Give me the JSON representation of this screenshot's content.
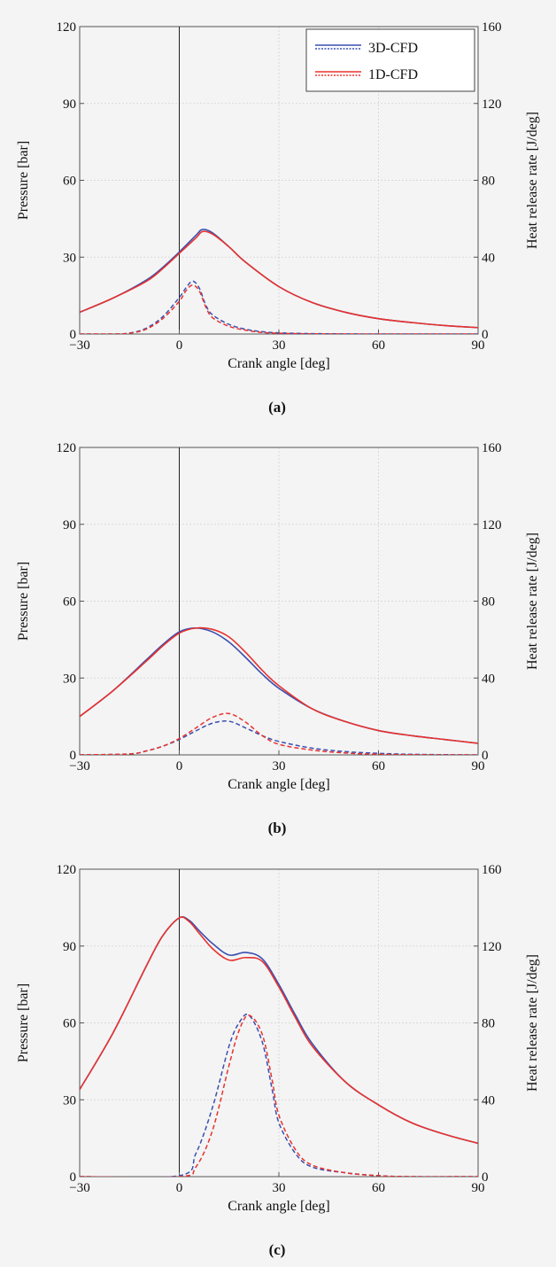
{
  "colors": {
    "3D-CFD": "#3a4fb0",
    "1D-CFD": "#e8322e",
    "grid": "#d9d9d9",
    "frame": "#555555"
  },
  "legend": {
    "placement": "top-right",
    "entries": [
      "3D-CFD",
      "1D-CFD"
    ]
  },
  "chart_data": [
    {
      "type": "line",
      "panel_label": "(a)",
      "xlabel": "Crank angle [deg]",
      "ylabel": "Pressure [bar]",
      "y2label": "Heat release rate [J/deg]",
      "xlim": [
        -30,
        90
      ],
      "ylim": [
        0,
        120
      ],
      "y2lim": [
        0,
        160
      ],
      "xticks": [
        "−30",
        "0",
        "30",
        "60",
        "90"
      ],
      "yticks": [
        "0",
        "30",
        "60",
        "90",
        "120"
      ],
      "y2ticks": [
        "0",
        "40",
        "80",
        "120",
        "160"
      ],
      "grid": true,
      "show_legend": true,
      "series": [
        {
          "name": "3D-CFD",
          "quantity": "pressure",
          "style": "solid",
          "x": [
            -30,
            -20,
            -10,
            -5,
            0,
            5,
            7,
            10,
            15,
            20,
            30,
            40,
            50,
            60,
            70,
            80,
            90
          ],
          "y": [
            8.5,
            14,
            21,
            26,
            32,
            38.5,
            40.8,
            39.5,
            34,
            28,
            18.5,
            12.3,
            8.5,
            6,
            4.5,
            3.3,
            2.5
          ]
        },
        {
          "name": "1D-CFD",
          "quantity": "pressure",
          "style": "solid",
          "x": [
            -30,
            -20,
            -10,
            -5,
            0,
            5,
            7,
            10,
            15,
            20,
            30,
            40,
            50,
            60,
            70,
            80,
            90
          ],
          "y": [
            8.5,
            14,
            20.5,
            25.5,
            31.5,
            37.5,
            40,
            39,
            34,
            28,
            18.5,
            12.3,
            8.5,
            6,
            4.5,
            3.3,
            2.5
          ]
        },
        {
          "name": "3D-CFD",
          "quantity": "heat release rate",
          "style": "dashed",
          "x": [
            -30,
            -20,
            -15,
            -10,
            -5,
            0,
            2,
            4,
            6,
            8,
            10,
            15,
            20,
            25,
            30,
            40,
            60,
            90
          ],
          "y": [
            0,
            0,
            0.5,
            3,
            9,
            19,
            24,
            27.5,
            24,
            15,
            10,
            5,
            2.5,
            1.2,
            0.6,
            0.2,
            0,
            0
          ]
        },
        {
          "name": "1D-CFD",
          "quantity": "heat release rate",
          "style": "dashed",
          "x": [
            -30,
            -20,
            -15,
            -10,
            -5,
            0,
            2,
            4,
            6,
            8,
            10,
            15,
            20,
            25,
            30,
            40,
            60,
            90
          ],
          "y": [
            0,
            0,
            0.4,
            2.5,
            8,
            17,
            22.5,
            25.5,
            22.5,
            14,
            8.5,
            4,
            2,
            0.8,
            0.4,
            0.1,
            0,
            0
          ]
        }
      ]
    },
    {
      "type": "line",
      "panel_label": "(b)",
      "xlabel": "Crank angle [deg]",
      "ylabel": "Pressure [bar]",
      "y2label": "Heat release rate [J/deg]",
      "xlim": [
        -30,
        90
      ],
      "ylim": [
        0,
        120
      ],
      "y2lim": [
        0,
        160
      ],
      "xticks": [
        "−30",
        "0",
        "30",
        "60",
        "90"
      ],
      "yticks": [
        "0",
        "30",
        "60",
        "90",
        "120"
      ],
      "y2ticks": [
        "0",
        "40",
        "80",
        "120",
        "160"
      ],
      "grid": true,
      "show_legend": false,
      "series": [
        {
          "name": "3D-CFD",
          "quantity": "pressure",
          "style": "solid",
          "x": [
            -30,
            -20,
            -10,
            -5,
            0,
            5,
            10,
            15,
            20,
            25,
            30,
            40,
            50,
            60,
            70,
            80,
            90
          ],
          "y": [
            15,
            25,
            37,
            43,
            48,
            49.5,
            48,
            44,
            38,
            31.5,
            26,
            18,
            13,
            9.5,
            7.5,
            6,
            4.5
          ]
        },
        {
          "name": "1D-CFD",
          "quantity": "pressure",
          "style": "solid",
          "x": [
            -30,
            -20,
            -10,
            -5,
            0,
            5,
            10,
            15,
            20,
            25,
            30,
            40,
            50,
            60,
            70,
            80,
            90
          ],
          "y": [
            15,
            25,
            36.5,
            42.5,
            47.5,
            49.5,
            49,
            46,
            40,
            33,
            27,
            18,
            13,
            9.5,
            7.5,
            6,
            4.5
          ]
        },
        {
          "name": "3D-CFD",
          "quantity": "heat release rate",
          "style": "dashed",
          "x": [
            -30,
            -15,
            -10,
            -5,
            0,
            5,
            10,
            15,
            20,
            25,
            30,
            40,
            50,
            60,
            70,
            80,
            90
          ],
          "y": [
            0,
            0.5,
            2,
            4.5,
            8,
            12.5,
            16.5,
            17.5,
            14,
            10,
            7,
            3.5,
            1.7,
            0.8,
            0.3,
            0.1,
            0
          ]
        },
        {
          "name": "1D-CFD",
          "quantity": "heat release rate",
          "style": "dashed",
          "x": [
            -30,
            -15,
            -10,
            -5,
            0,
            5,
            10,
            15,
            20,
            25,
            30,
            40,
            50,
            60,
            70,
            80,
            90
          ],
          "y": [
            0,
            0.5,
            2,
            4.5,
            8.5,
            14,
            19.5,
            21.5,
            17,
            10,
            5.5,
            2.5,
            1,
            0.3,
            0.1,
            0,
            0
          ]
        }
      ]
    },
    {
      "type": "line",
      "panel_label": "(c)",
      "xlabel": "Crank angle [deg]",
      "ylabel": "Pressure [bar]",
      "y2label": "Heat release rate [J/deg]",
      "xlim": [
        -30,
        90
      ],
      "ylim": [
        0,
        120
      ],
      "y2lim": [
        0,
        160
      ],
      "xticks": [
        "−30",
        "0",
        "30",
        "60",
        "90"
      ],
      "yticks": [
        "0",
        "30",
        "60",
        "90",
        "120"
      ],
      "y2ticks": [
        "0",
        "40",
        "80",
        "120",
        "160"
      ],
      "grid": true,
      "show_legend": false,
      "series": [
        {
          "name": "3D-CFD",
          "quantity": "pressure",
          "style": "solid",
          "x": [
            -30,
            -20,
            -10,
            -5,
            0,
            3,
            6,
            10,
            15,
            20,
            25,
            30,
            35,
            40,
            50,
            60,
            70,
            80,
            90
          ],
          "y": [
            34,
            56,
            82,
            94,
            101,
            100,
            96,
            91,
            86.5,
            87.5,
            85,
            75,
            63,
            52,
            37,
            28,
            21,
            16.5,
            13
          ]
        },
        {
          "name": "1D-CFD",
          "quantity": "pressure",
          "style": "solid",
          "x": [
            -30,
            -20,
            -10,
            -5,
            0,
            3,
            6,
            10,
            15,
            20,
            25,
            30,
            35,
            40,
            50,
            60,
            70,
            80,
            90
          ],
          "y": [
            34,
            56,
            82,
            94,
            101,
            99.5,
            95,
            89,
            84.5,
            85.5,
            84,
            74,
            62,
            51,
            37,
            28,
            21,
            16.5,
            13
          ]
        },
        {
          "name": "3D-CFD",
          "quantity": "heat release rate",
          "style": "dashed",
          "x": [
            -30,
            0,
            5,
            10,
            15,
            18,
            21,
            25,
            28,
            30,
            35,
            40,
            50,
            60,
            70,
            90
          ],
          "y": [
            0,
            0.5,
            12,
            36,
            68,
            80,
            84,
            70,
            45,
            28,
            12,
            5,
            2,
            0.5,
            0,
            0
          ]
        },
        {
          "name": "1D-CFD",
          "quantity": "heat release rate",
          "style": "dashed",
          "x": [
            -30,
            0,
            5,
            10,
            15,
            18,
            21,
            25,
            28,
            30,
            35,
            40,
            50,
            60,
            70,
            90
          ],
          "y": [
            0,
            0,
            5,
            24,
            58,
            76,
            84,
            74,
            50,
            32,
            14,
            6,
            2,
            0.5,
            0,
            0
          ]
        }
      ]
    }
  ]
}
